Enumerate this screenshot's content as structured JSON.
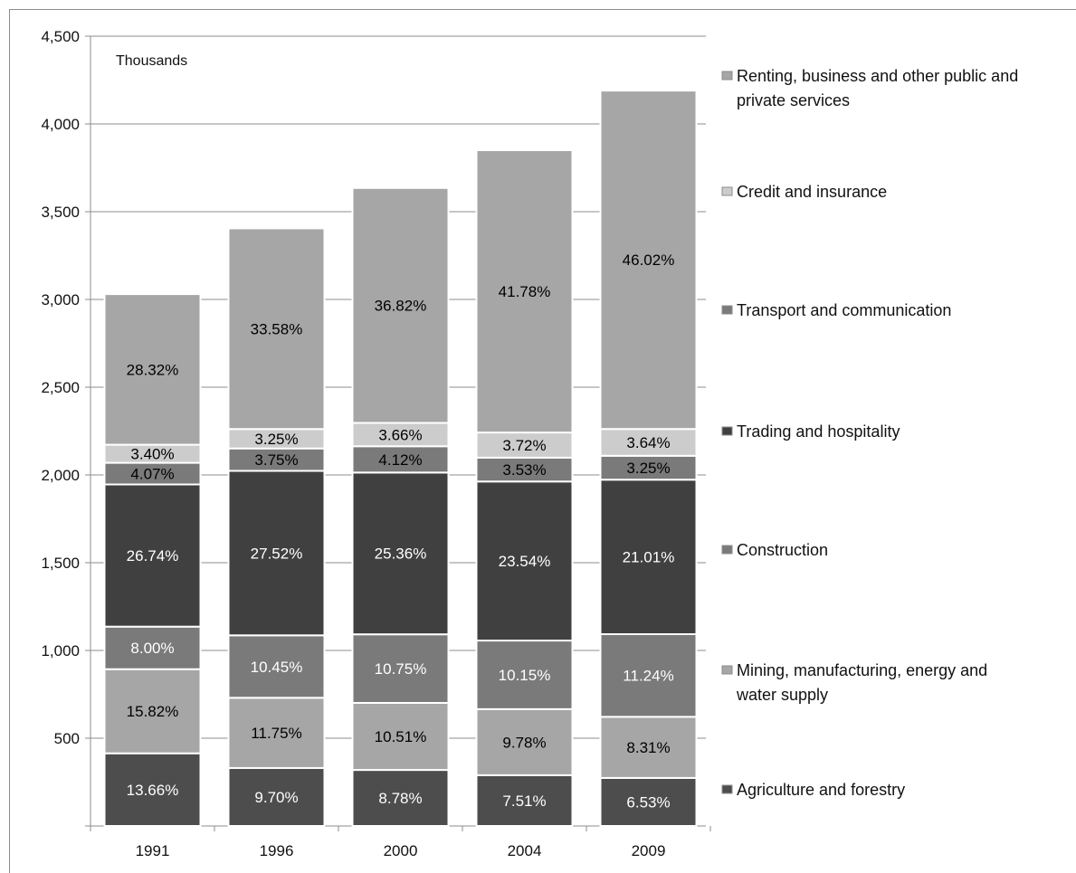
{
  "chart_data": {
    "type": "bar",
    "stacked": true,
    "unit_label": "Thousands",
    "categories": [
      "1991",
      "1996",
      "2000",
      "2004",
      "2009"
    ],
    "totals": [
      3030,
      3405,
      3635,
      3850,
      4190
    ],
    "ylim": [
      0,
      4500
    ],
    "y_ticks": [
      0,
      500,
      1000,
      1500,
      2000,
      2500,
      3000,
      3500,
      4000,
      4500
    ],
    "y_tick_labels": [
      "",
      "500",
      "1,000",
      "1,500",
      "2,000",
      "2,500",
      "3,000",
      "3,500",
      "4,000",
      "4,500"
    ],
    "grid": true,
    "legend_position": "right",
    "series": [
      {
        "name": "Agriculture and forestry",
        "color": "#4d4d4d",
        "label_color": "#ffffff",
        "percents": [
          13.66,
          9.7,
          8.78,
          7.51,
          6.53
        ],
        "labels": [
          "13.66%",
          "9.70%",
          "8.78%",
          "7.51%",
          "6.53%"
        ]
      },
      {
        "name": "Mining, manufacturing, energy and water supply",
        "color": "#a6a6a6",
        "label_color": "#000000",
        "percents": [
          15.82,
          11.75,
          10.51,
          9.78,
          8.31
        ],
        "labels": [
          "15.82%",
          "11.75%",
          "10.51%",
          "9.78%",
          "8.31%"
        ]
      },
      {
        "name": "Construction",
        "color": "#7a7a7a",
        "label_color": "#ffffff",
        "percents": [
          8.0,
          10.45,
          10.75,
          10.15,
          11.24
        ],
        "labels": [
          "8.00%",
          "10.45%",
          "10.75%",
          "10.15%",
          "11.24%"
        ]
      },
      {
        "name": "Trading and hospitality",
        "color": "#404040",
        "label_color": "#ffffff",
        "percents": [
          26.74,
          27.52,
          25.36,
          23.54,
          21.01
        ],
        "labels": [
          "26.74%",
          "27.52%",
          "25.36%",
          "23.54%",
          "21.01%"
        ]
      },
      {
        "name": "Transport and communication",
        "color": "#7a7a7a",
        "label_color": "#000000",
        "percents": [
          4.07,
          3.75,
          4.12,
          3.53,
          3.25
        ],
        "labels": [
          "4.07%",
          "3.75%",
          "4.12%",
          "3.53%",
          "3.25%"
        ]
      },
      {
        "name": "Credit and insurance",
        "color": "#cccccc",
        "label_color": "#000000",
        "percents": [
          3.4,
          3.25,
          3.66,
          3.72,
          3.64
        ],
        "labels": [
          "3.40%",
          "3.25%",
          "3.66%",
          "3.72%",
          "3.64%"
        ]
      },
      {
        "name": "Renting, business and other public and private services",
        "color": "#a6a6a6",
        "label_color": "#000000",
        "percents": [
          28.32,
          33.58,
          36.82,
          41.78,
          46.02
        ],
        "labels": [
          "28.32%",
          "33.58%",
          "36.82%",
          "41.78%",
          "46.02%"
        ]
      }
    ],
    "legend": {
      "order": [
        6,
        5,
        4,
        3,
        2,
        1,
        0
      ],
      "lines": [
        [
          "Renting, business and other public and",
          "private services"
        ],
        [
          "Credit and insurance"
        ],
        [
          "Transport and communication"
        ],
        [
          "Trading and hospitality"
        ],
        [
          "Construction"
        ],
        [
          "Mining, manufacturing, energy and",
          "water supply"
        ],
        [
          "Agriculture and forestry"
        ]
      ]
    }
  }
}
